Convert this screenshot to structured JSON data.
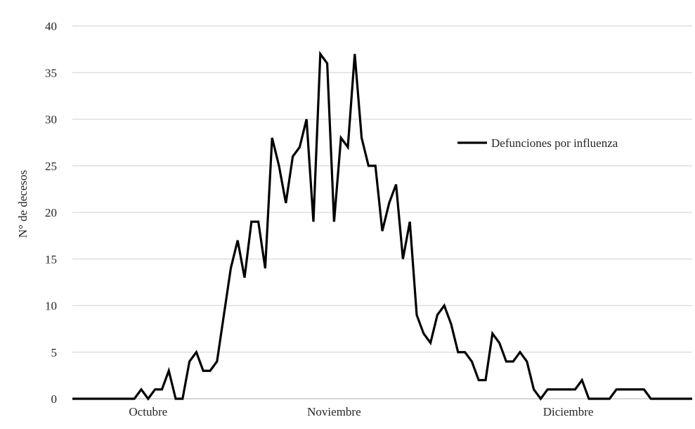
{
  "chart_data": {
    "type": "line",
    "title": "",
    "xlabel": "",
    "ylabel": "N° de decesos",
    "ylim": [
      0,
      40
    ],
    "yticks": [
      0,
      5,
      10,
      15,
      20,
      25,
      30,
      35,
      40
    ],
    "grid": true,
    "legend_position": "right",
    "x_tick_labels": [
      {
        "label": "Octubre",
        "day": 11
      },
      {
        "label": "Noviembre",
        "day": 38
      },
      {
        "label": "Diciembre",
        "day": 72
      }
    ],
    "colors": {
      "line": "#000000",
      "grid": "#d9d9d9",
      "text": "#262626"
    },
    "series": [
      {
        "name": "Defunciones por influenza",
        "values": [
          0,
          0,
          0,
          0,
          0,
          0,
          0,
          0,
          0,
          0,
          1,
          0,
          1,
          1,
          3,
          0,
          0,
          4,
          5,
          3,
          3,
          4,
          9,
          14,
          17,
          13,
          19,
          19,
          14,
          28,
          25,
          21,
          26,
          27,
          30,
          19,
          37,
          36,
          19,
          28,
          27,
          37,
          28,
          25,
          25,
          18,
          21,
          23,
          15,
          19,
          9,
          7,
          6,
          9,
          10,
          8,
          5,
          5,
          4,
          2,
          2,
          7,
          6,
          4,
          4,
          5,
          4,
          1,
          0,
          1,
          1,
          1,
          1,
          1,
          2,
          0,
          0,
          0,
          0,
          1,
          1,
          1,
          1,
          1,
          0,
          0,
          0,
          0,
          0,
          0,
          0
        ]
      }
    ]
  }
}
